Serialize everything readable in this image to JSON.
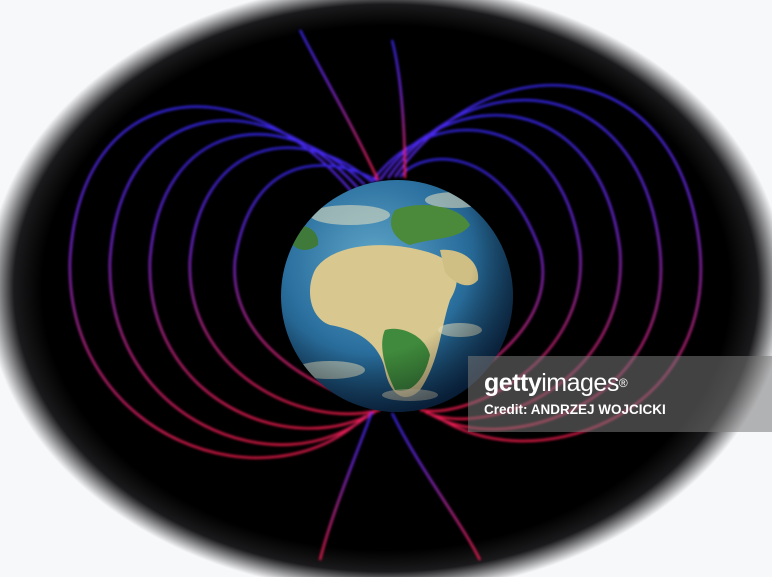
{
  "watermark": {
    "logo_bold": "getty",
    "logo_light": "images",
    "logo_mark": "®",
    "credit": "Credit: ANDRZEJ WOJCICKI"
  },
  "scene": {
    "subject": "earth-magnetic-field-icon",
    "background_color": "#000000",
    "vignette_color": "#f7f8fa",
    "field_line_colors": [
      "#3a2cff",
      "#7a2cf0",
      "#c02a9a",
      "#ff1e50"
    ],
    "ocean_color": "#2a6f9e",
    "land_colors": [
      "#d8c890",
      "#3f8a3c",
      "#e9e2c0"
    ]
  }
}
